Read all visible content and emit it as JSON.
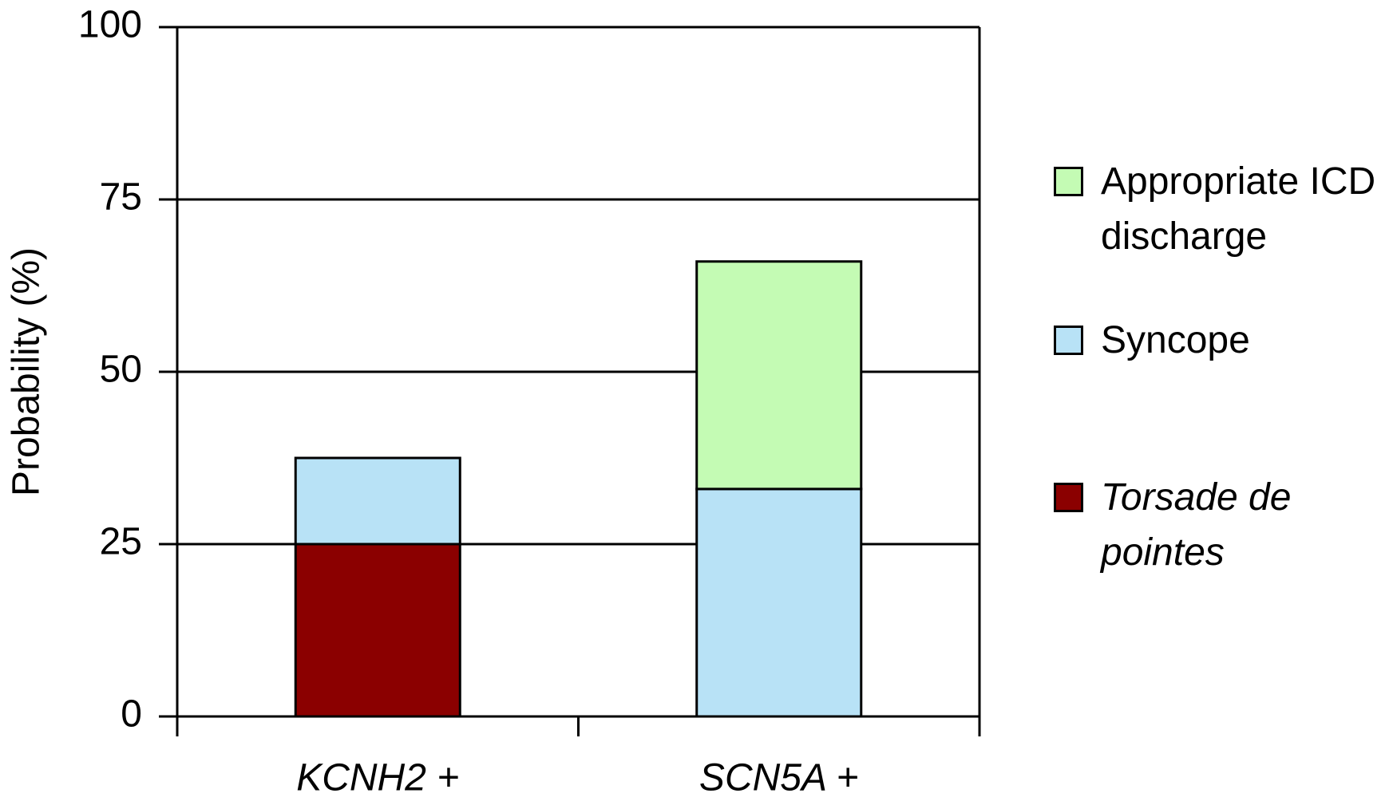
{
  "chart_data": {
    "type": "stacked_bar",
    "y_label": "Probability (%)",
    "categories": [
      "KCNH2 +",
      "SCN5A +"
    ],
    "series": [
      {
        "name": "Torsade de pointes",
        "color": "#8b0000",
        "values": [
          25,
          0
        ]
      },
      {
        "name": "Syncope",
        "color": "#b8e2f6",
        "values": [
          12.5,
          33
        ]
      },
      {
        "name": "Appropriate ICD discharge",
        "color": "#c4fbb4",
        "values": [
          0,
          33
        ]
      }
    ],
    "ylim": [
      0,
      100
    ],
    "yticks": [
      0,
      25,
      50,
      75,
      100
    ],
    "grid": true,
    "legend": "right"
  }
}
